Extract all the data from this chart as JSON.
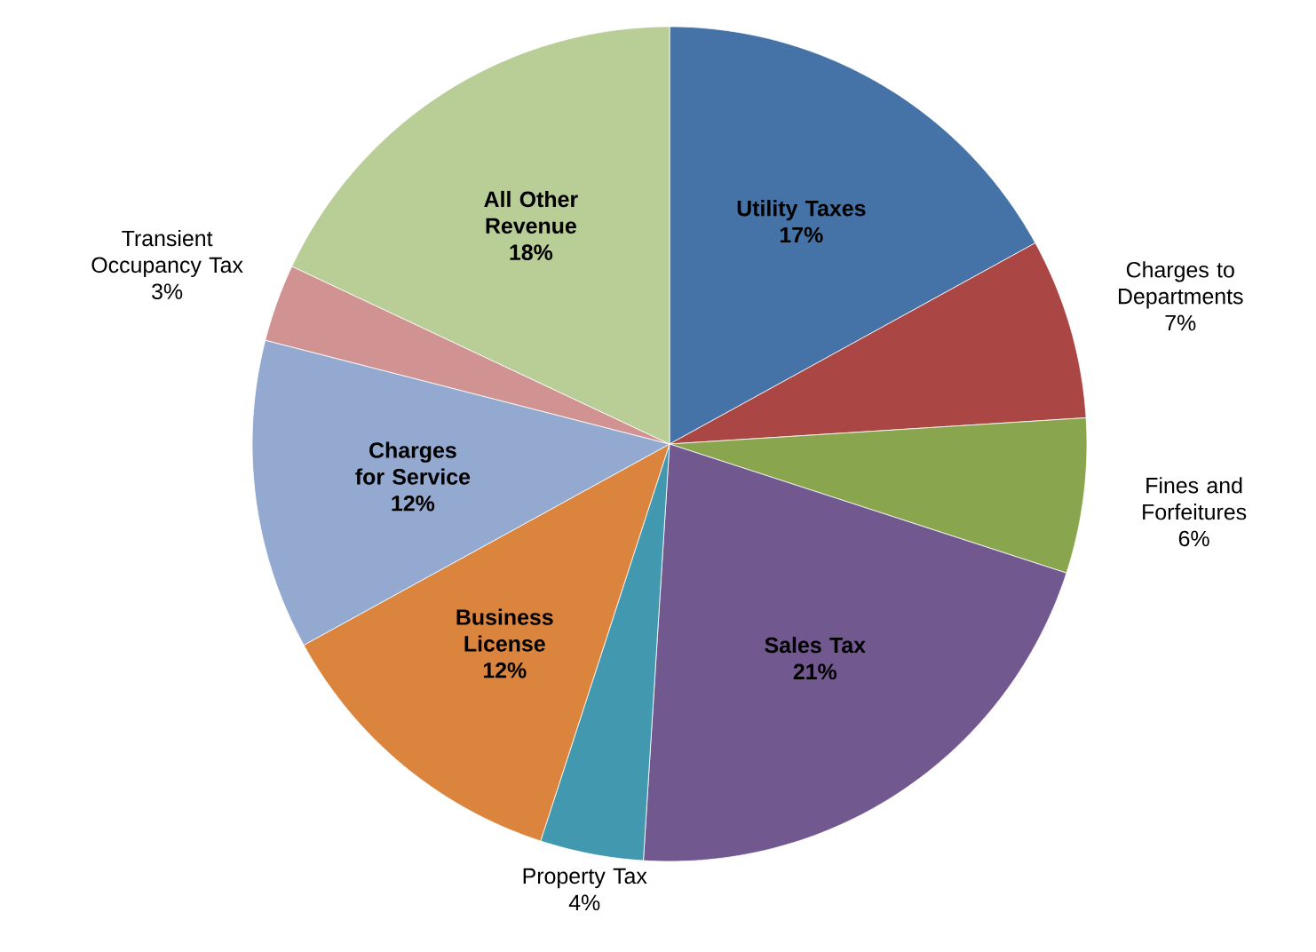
{
  "chart_data": {
    "type": "pie",
    "categories": [
      "Utility Taxes",
      "Charges to Departments",
      "Fines and Forfeitures",
      "Sales Tax",
      "Property Tax",
      "Business License",
      "Charges for Service",
      "Transient Occupancy Tax",
      "All Other Revenue"
    ],
    "values": [
      17,
      7,
      6,
      21,
      4,
      12,
      12,
      3,
      18
    ],
    "value_labels": [
      "17%",
      "7%",
      "6%",
      "21%",
      "4%",
      "12%",
      "12%",
      "3%",
      "18%"
    ],
    "colors": [
      "#4572a7",
      "#aa4643",
      "#89a54e",
      "#71588f",
      "#4198af",
      "#db843d",
      "#93a9cf",
      "#d19392",
      "#b9cd96"
    ],
    "legend": false
  }
}
